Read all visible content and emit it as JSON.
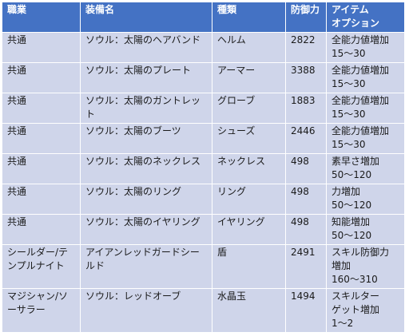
{
  "table": {
    "headers": [
      "職業",
      "装備名",
      "種類",
      "防御力",
      "アイテム\nオプション"
    ],
    "rows": [
      {
        "job": "共通",
        "name": "ソウル：太陽のヘアバンド",
        "type": "ヘルム",
        "defense": "2822",
        "option": "全能力値増加\n15～30"
      },
      {
        "job": "共通",
        "name": "ソウル：太陽のプレート",
        "type": "アーマー",
        "defense": "3388",
        "option": "全能力値増加\n15～30"
      },
      {
        "job": "共通",
        "name": "ソウル：太陽のガントレット",
        "type": "グローブ",
        "defense": "1883",
        "option": "全能力値増加\n15～30"
      },
      {
        "job": "共通",
        "name": "ソウル：太陽のブーツ",
        "type": "シューズ",
        "defense": "2446",
        "option": "全能力値増加\n15～30"
      },
      {
        "job": "共通",
        "name": "ソウル：太陽のネックレス",
        "type": "ネックレス",
        "defense": "498",
        "option": "素早さ増加\n50～120"
      },
      {
        "job": "共通",
        "name": "ソウル：太陽のリング",
        "type": "リング",
        "defense": "498",
        "option": "力増加\n50～120"
      },
      {
        "job": "共通",
        "name": "ソウル：太陽のイヤリング",
        "type": "イヤリング",
        "defense": "498",
        "option": "知能増加\n50～120"
      },
      {
        "job": "シールダー/テンプルナイト",
        "name": "アイアンレッドガードシールド",
        "type": "盾",
        "defense": "2491",
        "option": "スキル防御力\n増加\n160～310"
      },
      {
        "job": "マジシャン/ソーサラー",
        "name": "ソウル：レッドオーブ",
        "type": "水晶玉",
        "defense": "1494",
        "option": "スキルター\nゲット増加\n1～2"
      }
    ]
  }
}
